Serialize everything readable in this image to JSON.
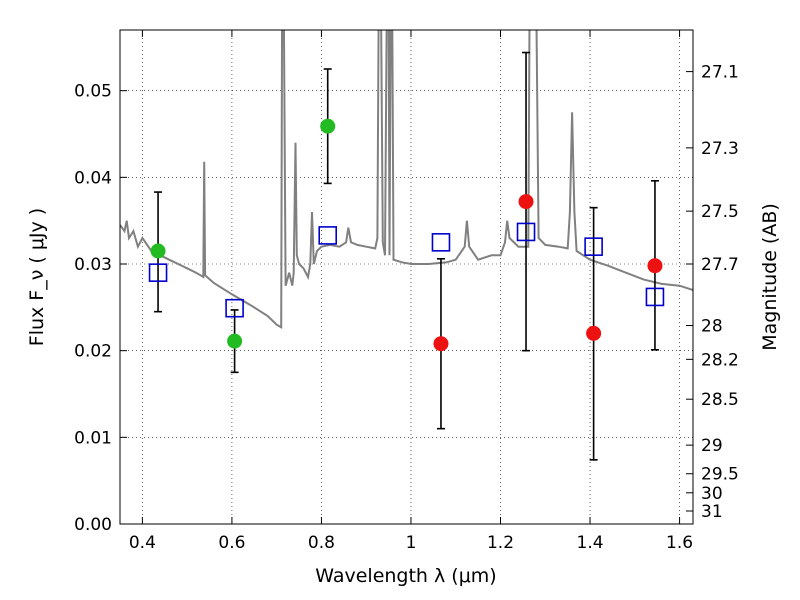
{
  "chart_data": {
    "type": "scatter",
    "xlabel": "Wavelength  λ (μm)",
    "ylabel": "Flux  F_ν  ( μJy )",
    "y2label": "Magnitude (AB)",
    "xlim": [
      0.35,
      1.63
    ],
    "ylim": [
      0.0,
      0.057
    ],
    "x_ticks": [
      0.4,
      0.6,
      0.8,
      1.0,
      1.2,
      1.4,
      1.6
    ],
    "x_tick_labels": [
      "0.4",
      "0.6",
      "0.8",
      "1",
      "1.2",
      "1.4",
      "1.6"
    ],
    "y_ticks": [
      0.0,
      0.01,
      0.02,
      0.03,
      0.04,
      0.05
    ],
    "y_tick_labels": [
      "0.00",
      "0.01",
      "0.02",
      "0.03",
      "0.04",
      "0.05"
    ],
    "y2_ticks": [
      {
        "label": "27.1",
        "flux": 0.0522
      },
      {
        "label": "27.3",
        "flux": 0.0434
      },
      {
        "label": "27.5",
        "flux": 0.0361
      },
      {
        "label": "27.7",
        "flux": 0.03
      },
      {
        "label": "28",
        "flux": 0.0229
      },
      {
        "label": "28.2",
        "flux": 0.019
      },
      {
        "label": "28.5",
        "flux": 0.0144
      },
      {
        "label": "29",
        "flux": 0.0091
      },
      {
        "label": "29.5",
        "flux": 0.0058
      },
      {
        "label": "30",
        "flux": 0.0036
      },
      {
        "label": "31",
        "flux": 0.0015
      }
    ],
    "grid": true,
    "colors": {
      "detection": "#22bb22",
      "upper_limit": "#ee1111",
      "model": "#0000cc",
      "spectrum": "#808080",
      "errorbar": "#000000"
    },
    "series": [
      {
        "marker": "circle",
        "color": "#22bb22",
        "points": [
          {
            "x": 0.435,
            "y": 0.0315,
            "err_low": 0.0245,
            "err_high": 0.0383
          },
          {
            "x": 0.606,
            "y": 0.0211,
            "err_low": 0.0175,
            "err_high": 0.0247
          },
          {
            "x": 0.814,
            "y": 0.0459,
            "err_low": 0.0393,
            "err_high": 0.0525
          }
        ]
      },
      {
        "marker": "circle",
        "color": "#ee1111",
        "points": [
          {
            "x": 1.067,
            "y": 0.0208,
            "err_low": 0.011,
            "err_high": 0.0306
          },
          {
            "x": 1.257,
            "y": 0.0372,
            "err_low": 0.02,
            "err_high": 0.0544
          },
          {
            "x": 1.408,
            "y": 0.022,
            "err_low": 0.0074,
            "err_high": 0.0365
          },
          {
            "x": 1.545,
            "y": 0.0298,
            "err_low": 0.0201,
            "err_high": 0.0396
          }
        ]
      },
      {
        "marker": "open-square",
        "color": "#0000cc",
        "points": [
          {
            "x": 0.435,
            "y": 0.029
          },
          {
            "x": 0.606,
            "y": 0.0249
          },
          {
            "x": 0.814,
            "y": 0.0333
          },
          {
            "x": 1.067,
            "y": 0.0325
          },
          {
            "x": 1.257,
            "y": 0.0337
          },
          {
            "x": 1.408,
            "y": 0.032
          },
          {
            "x": 1.545,
            "y": 0.0262
          }
        ]
      },
      {
        "type": "line",
        "color": "#808080",
        "points": [
          [
            0.35,
            0.0345
          ],
          [
            0.36,
            0.0338
          ],
          [
            0.365,
            0.035
          ],
          [
            0.37,
            0.033
          ],
          [
            0.38,
            0.0338
          ],
          [
            0.39,
            0.032
          ],
          [
            0.4,
            0.033
          ],
          [
            0.42,
            0.0315
          ],
          [
            0.44,
            0.031
          ],
          [
            0.46,
            0.0305
          ],
          [
            0.48,
            0.03
          ],
          [
            0.5,
            0.0295
          ],
          [
            0.52,
            0.029
          ],
          [
            0.53,
            0.0287
          ],
          [
            0.536,
            0.0285
          ],
          [
            0.538,
            0.0418
          ],
          [
            0.54,
            0.0287
          ],
          [
            0.56,
            0.0278
          ],
          [
            0.6,
            0.0265
          ],
          [
            0.64,
            0.0253
          ],
          [
            0.68,
            0.024
          ],
          [
            0.7,
            0.023
          ],
          [
            0.71,
            0.0227
          ],
          [
            0.712,
            0.06
          ],
          [
            0.716,
            0.06
          ],
          [
            0.72,
            0.0275
          ],
          [
            0.728,
            0.029
          ],
          [
            0.735,
            0.0275
          ],
          [
            0.738,
            0.029
          ],
          [
            0.742,
            0.044
          ],
          [
            0.745,
            0.031
          ],
          [
            0.75,
            0.03
          ],
          [
            0.76,
            0.0295
          ],
          [
            0.77,
            0.0285
          ],
          [
            0.775,
            0.03
          ],
          [
            0.779,
            0.036
          ],
          [
            0.783,
            0.03
          ],
          [
            0.79,
            0.0315
          ],
          [
            0.8,
            0.032
          ],
          [
            0.82,
            0.0322
          ],
          [
            0.84,
            0.032
          ],
          [
            0.855,
            0.0325
          ],
          [
            0.86,
            0.0342
          ],
          [
            0.866,
            0.0325
          ],
          [
            0.88,
            0.0322
          ],
          [
            0.9,
            0.032
          ],
          [
            0.92,
            0.0318
          ],
          [
            0.925,
            0.033
          ],
          [
            0.928,
            0.06
          ],
          [
            0.933,
            0.06
          ],
          [
            0.937,
            0.0325
          ],
          [
            0.942,
            0.031
          ],
          [
            0.946,
            0.06
          ],
          [
            0.95,
            0.06
          ],
          [
            0.952,
            0.031
          ],
          [
            0.955,
            0.06
          ],
          [
            0.958,
            0.06
          ],
          [
            0.961,
            0.0305
          ],
          [
            0.98,
            0.0302
          ],
          [
            1.0,
            0.03
          ],
          [
            1.04,
            0.03
          ],
          [
            1.08,
            0.0302
          ],
          [
            1.1,
            0.0305
          ],
          [
            1.12,
            0.032
          ],
          [
            1.125,
            0.035
          ],
          [
            1.13,
            0.032
          ],
          [
            1.15,
            0.0305
          ],
          [
            1.18,
            0.031
          ],
          [
            1.2,
            0.031
          ],
          [
            1.21,
            0.0325
          ],
          [
            1.215,
            0.035
          ],
          [
            1.22,
            0.033
          ],
          [
            1.24,
            0.032
          ],
          [
            1.262,
            0.032
          ],
          [
            1.265,
            0.06
          ],
          [
            1.27,
            0.06
          ],
          [
            1.275,
            0.06
          ],
          [
            1.28,
            0.06
          ],
          [
            1.285,
            0.033
          ],
          [
            1.3,
            0.0322
          ],
          [
            1.33,
            0.032
          ],
          [
            1.35,
            0.0318
          ],
          [
            1.355,
            0.036
          ],
          [
            1.36,
            0.0475
          ],
          [
            1.365,
            0.036
          ],
          [
            1.37,
            0.0315
          ],
          [
            1.4,
            0.0305
          ],
          [
            1.44,
            0.0298
          ],
          [
            1.48,
            0.029
          ],
          [
            1.52,
            0.0282
          ],
          [
            1.56,
            0.0277
          ],
          [
            1.6,
            0.0275
          ],
          [
            1.63,
            0.027
          ]
        ]
      }
    ]
  }
}
